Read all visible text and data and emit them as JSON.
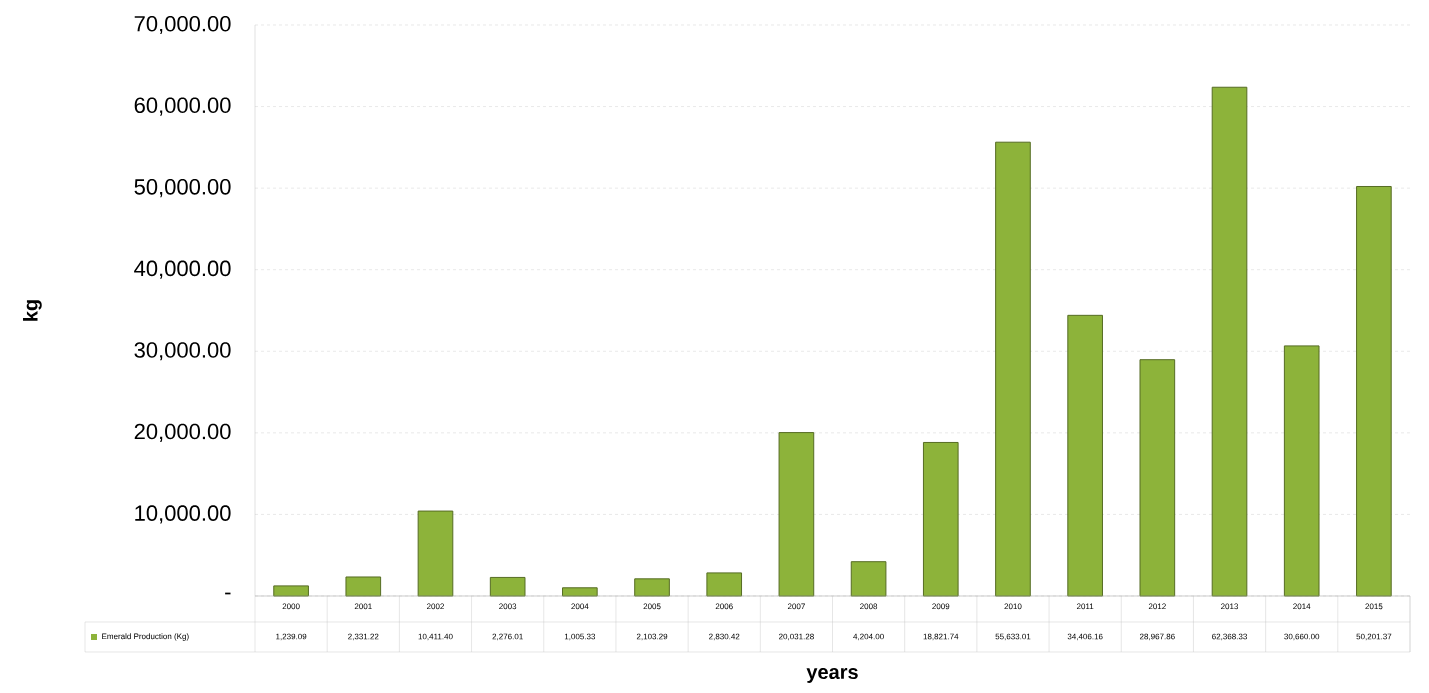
{
  "chart_data": {
    "type": "bar",
    "xlabel": "years",
    "ylabel": "kg",
    "categories": [
      "2000",
      "2001",
      "2002",
      "2003",
      "2004",
      "2005",
      "2006",
      "2007",
      "2008",
      "2009",
      "2010",
      "2011",
      "2012",
      "2013",
      "2014",
      "2015"
    ],
    "series": [
      {
        "name": "Emerald Production (Kg)",
        "color": "#8db33a",
        "values": [
          1239.09,
          2331.22,
          10411.4,
          2276.01,
          1005.33,
          2103.29,
          2830.42,
          20031.28,
          4204.0,
          18821.74,
          55633.01,
          34406.16,
          28967.86,
          62368.33,
          30660.0,
          50201.37
        ],
        "value_labels": [
          "1,239.09",
          "2,331.22",
          "10,411.40",
          "2,276.01",
          "1,005.33",
          "2,103.29",
          "2,830.42",
          "20,031.28",
          "4,204.00",
          "18,821.74",
          "55,633.01",
          "34,406.16",
          "28,967.86",
          "62,368.33",
          "30,660.00",
          "50,201.37"
        ]
      }
    ],
    "ylim": [
      0,
      70000
    ],
    "yticks": [
      {
        "value": 0,
        "label": "-"
      },
      {
        "value": 10000,
        "label": "10,000.00"
      },
      {
        "value": 20000,
        "label": "20,000.00"
      },
      {
        "value": 30000,
        "label": "30,000.00"
      },
      {
        "value": 40000,
        "label": "40,000.00"
      },
      {
        "value": 50000,
        "label": "50,000.00"
      },
      {
        "value": 60000,
        "label": "60,000.00"
      },
      {
        "value": 70000,
        "label": "70,000.00"
      }
    ],
    "grid": "y",
    "legend": "bottom left"
  }
}
